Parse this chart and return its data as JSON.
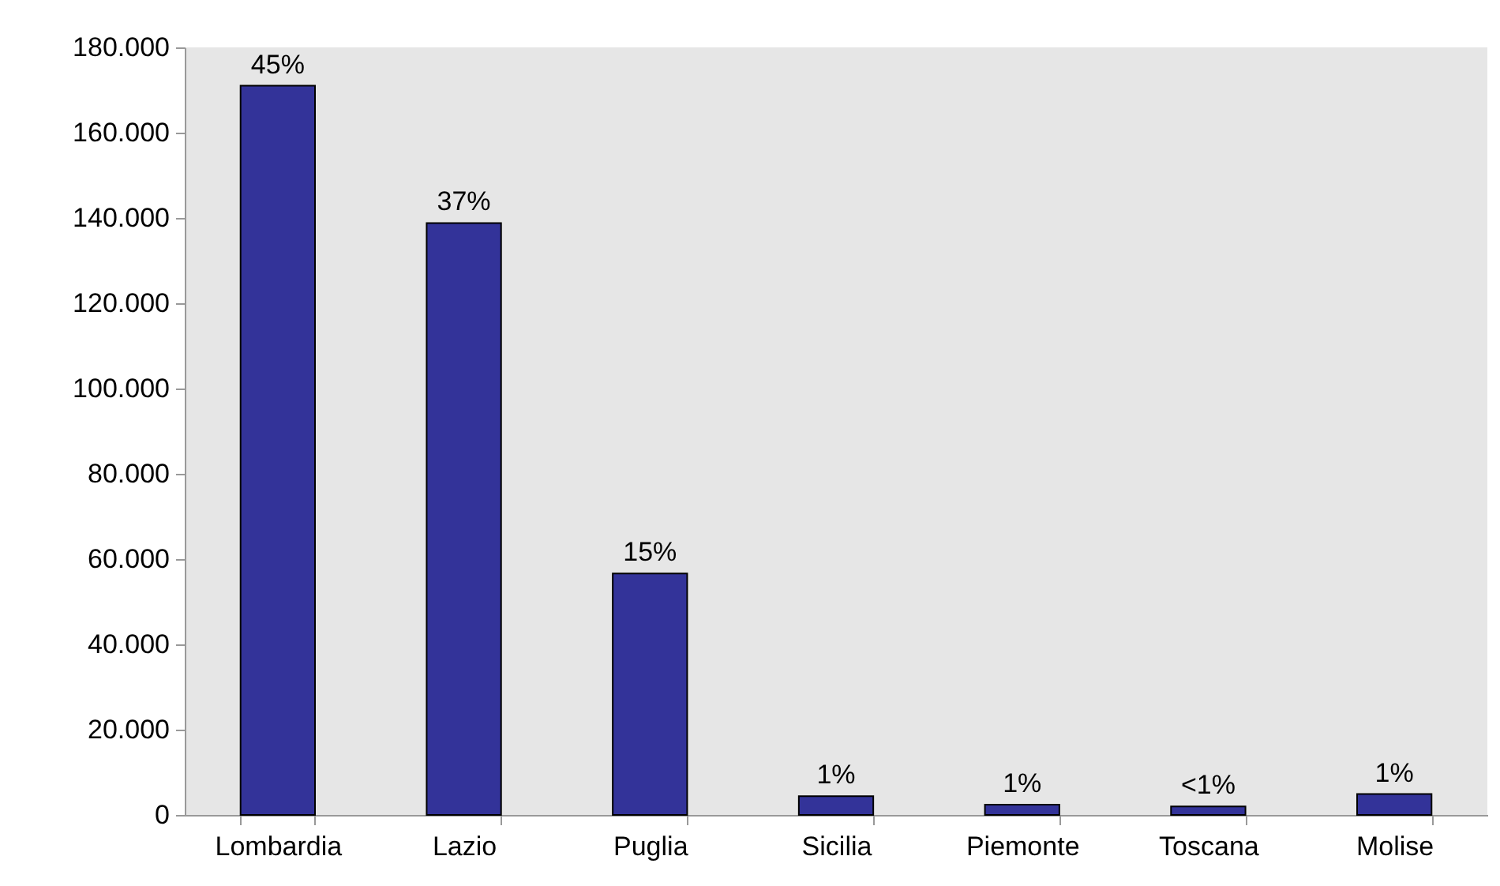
{
  "chart_data": {
    "type": "bar",
    "categories": [
      "Lombardia",
      "Lazio",
      "Puglia",
      "Sicilia",
      "Piemonte",
      "Toscana",
      "Molise"
    ],
    "values": [
      171000,
      138800,
      56600,
      4400,
      2400,
      2000,
      4900
    ],
    "annotations": [
      {
        "text": "45%",
        "x": "Lombardia",
        "y": 171000
      },
      {
        "text": "37%",
        "x": "Lazio",
        "y": 138800
      },
      {
        "text": "15%",
        "x": "Puglia",
        "y": 56600
      },
      {
        "text": "1%",
        "x": "Sicilia",
        "y": 4400
      },
      {
        "text": "1%",
        "x": "Piemonte",
        "y": 2400
      },
      {
        "text": "<1%",
        "x": "Toscana",
        "y": 2000
      },
      {
        "text": "1%",
        "x": "Molise",
        "y": 4900
      }
    ],
    "color": "#333399",
    "ylim": [
      0,
      180000
    ],
    "yticks": [
      0,
      {
        "value": 20000,
        "label": "20.000"
      },
      {
        "value": 40000,
        "label": "40.000"
      },
      {
        "value": 60000,
        "label": "60.000"
      },
      {
        "value": 80000,
        "label": "80.000"
      },
      {
        "value": 100000,
        "label": "100.000"
      },
      {
        "value": 120000,
        "label": "120.000"
      },
      {
        "value": 140000,
        "label": "140.000"
      },
      {
        "value": 160000,
        "label": "160.000"
      },
      {
        "value": 180000,
        "label": "180.000"
      }
    ],
    "grid": false
  }
}
